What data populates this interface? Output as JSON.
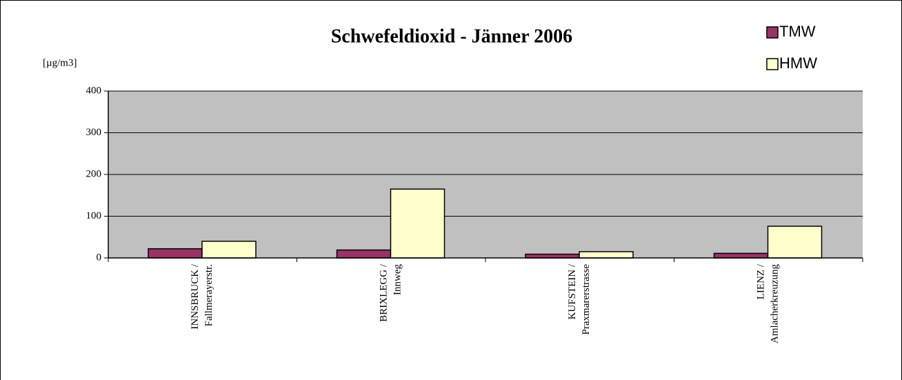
{
  "chart_data": {
    "type": "bar",
    "title": "Schwefeldioxid - Jänner 2006",
    "y_label": "[µg/m3]",
    "categories": [
      [
        "INNSBRUCK /",
        "Fallmerayerstr."
      ],
      [
        "BRIXLEGG /",
        "Innweg"
      ],
      [
        "KUFSTEIN /",
        "Praxmarerstrasse"
      ],
      [
        "LIENZ /",
        "Amlacherkreuzung"
      ]
    ],
    "series": [
      {
        "name": "TMW",
        "color": "#993366",
        "values": [
          22,
          19,
          9,
          11
        ]
      },
      {
        "name": "HMW",
        "color": "#ffffcc",
        "values": [
          40,
          165,
          15,
          76
        ]
      }
    ],
    "ylim": [
      0,
      400
    ],
    "yticks": [
      0,
      100,
      200,
      300,
      400
    ],
    "grid": true,
    "legend": "top-right",
    "plot_background": "#c0c0c0"
  }
}
